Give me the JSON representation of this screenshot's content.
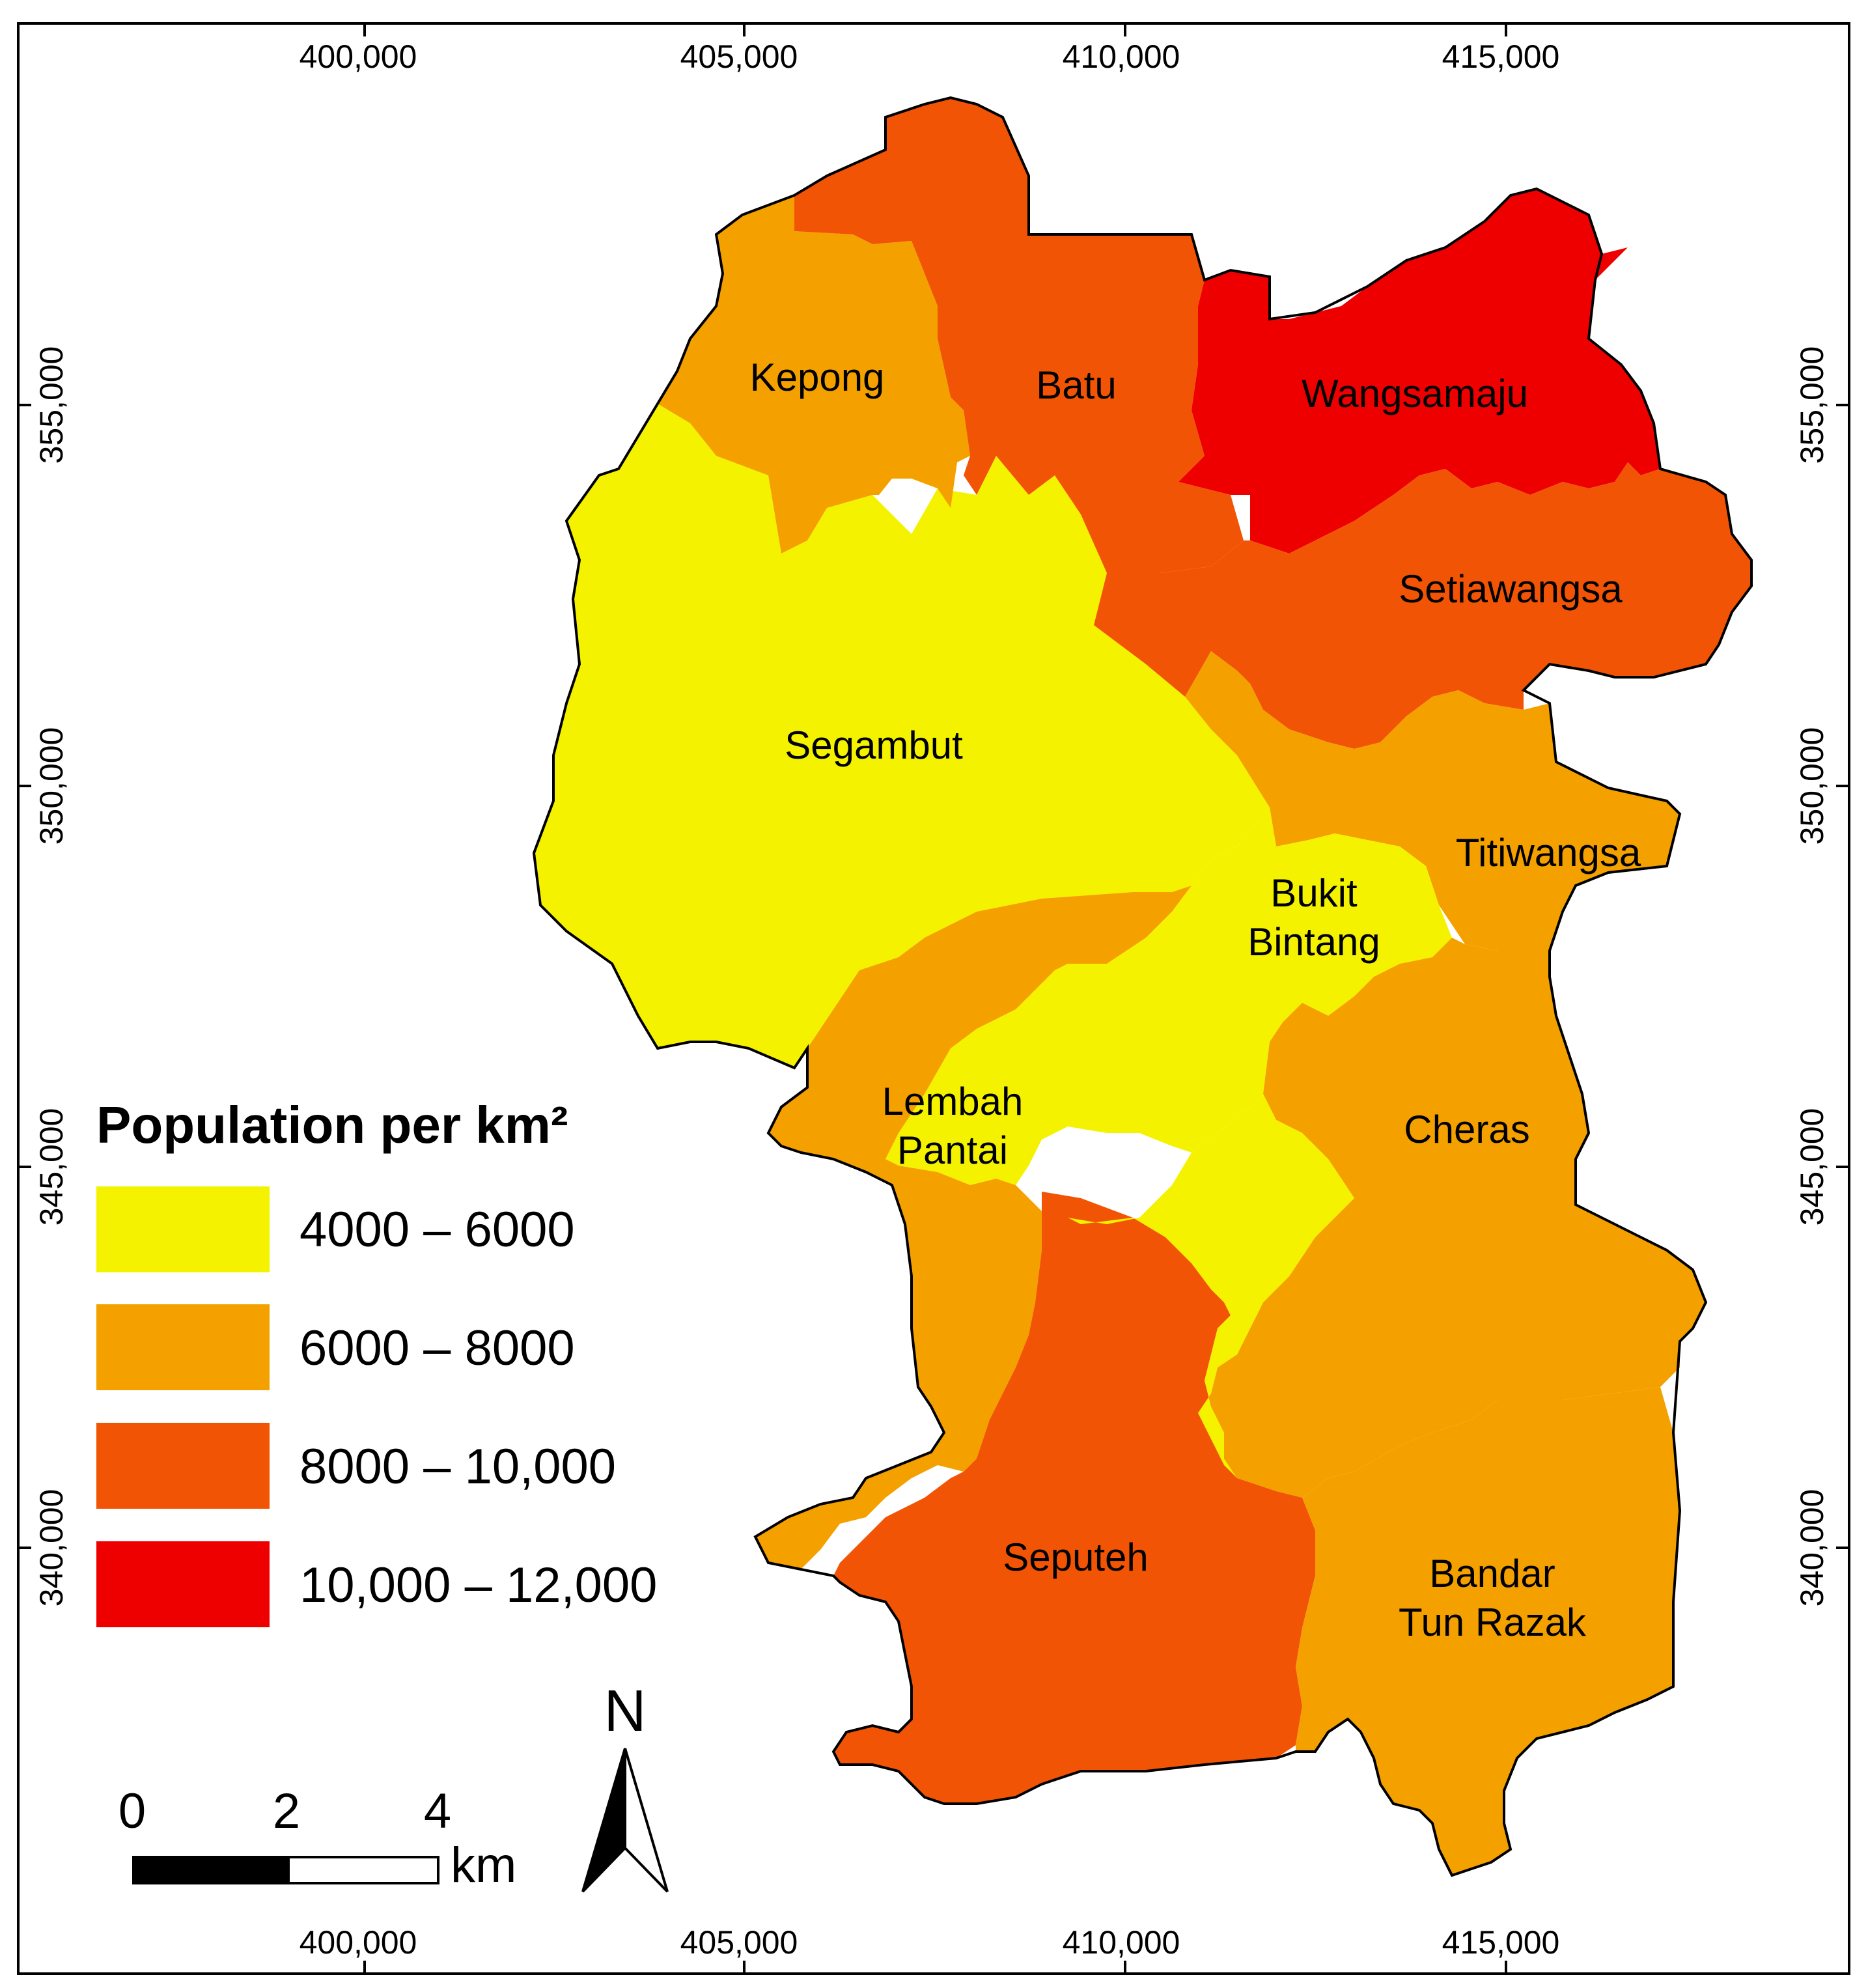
{
  "map": {
    "x_ticks": [
      "400,000",
      "405,000",
      "410,000",
      "415,000"
    ],
    "y_ticks": [
      "355,000",
      "350,000",
      "345,000",
      "340,000"
    ],
    "districts": [
      {
        "id": "segambut",
        "label_lines": [
          "Segambut"
        ],
        "density_class": 0
      },
      {
        "id": "kepong",
        "label_lines": [
          "Kepong"
        ],
        "density_class": 1
      },
      {
        "id": "batu",
        "label_lines": [
          "Batu"
        ],
        "density_class": 2
      },
      {
        "id": "wangsamaju",
        "label_lines": [
          "Wangsamaju"
        ],
        "density_class": 3
      },
      {
        "id": "setiawangsa",
        "label_lines": [
          "Setiawangsa"
        ],
        "density_class": 2
      },
      {
        "id": "titiwangsa",
        "label_lines": [
          "Titiwangsa"
        ],
        "density_class": 1
      },
      {
        "id": "bukit-bintang",
        "label_lines": [
          "Bukit",
          "Bintang"
        ],
        "density_class": 0
      },
      {
        "id": "lembah-pantai",
        "label_lines": [
          "Lembah",
          "Pantai"
        ],
        "density_class": 1
      },
      {
        "id": "cheras",
        "label_lines": [
          "Cheras"
        ],
        "density_class": 1
      },
      {
        "id": "seputeh",
        "label_lines": [
          "Seputeh"
        ],
        "density_class": 2
      },
      {
        "id": "bandar-tun-razak",
        "label_lines": [
          "Bandar",
          "Tun Razak"
        ],
        "density_class": 1
      }
    ]
  },
  "legend": {
    "title": "Population per km²",
    "classes": [
      {
        "label": "4000 – 6000",
        "color": "#f5f200"
      },
      {
        "label": "6000 – 8000",
        "color": "#f4a100"
      },
      {
        "label": "8000 – 10,000",
        "color": "#f25405"
      },
      {
        "label": "10,000 – 12,000",
        "color": "#ee0000"
      }
    ]
  },
  "scale_bar": {
    "ticks": [
      "0",
      "2",
      "4"
    ],
    "unit": "km"
  },
  "north_arrow": {
    "label": "N",
    "icon": "north-arrow-icon"
  }
}
